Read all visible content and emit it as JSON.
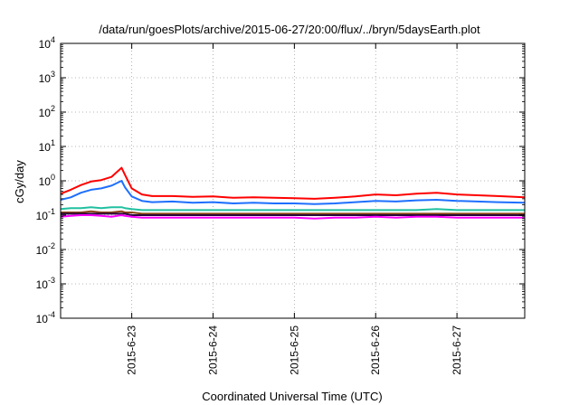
{
  "chart_data": {
    "type": "line",
    "title": "/data/run/goesPlots/archive/2015-06-27/20:00/flux/../bryn/5daysEarth.plot",
    "xlabel": "Coordinated Universal Time (UTC)",
    "ylabel": "cGy/day",
    "yscale": "log",
    "ylim": [
      0.0001,
      10000
    ],
    "xlim": [
      "2015-06-22 03:00",
      "2015-06-27 20:00"
    ],
    "x_ticks": [
      {
        "date": "2015-06-23",
        "label": "2015-6-23"
      },
      {
        "date": "2015-06-24",
        "label": "2015-6-24"
      },
      {
        "date": "2015-06-25",
        "label": "2015-6-25"
      },
      {
        "date": "2015-06-26",
        "label": "2015-6-26"
      },
      {
        "date": "2015-06-27",
        "label": "2015-6-27"
      }
    ],
    "y_ticks": [
      {
        "base": "10",
        "exp": "-4",
        "value": 0.0001
      },
      {
        "base": "10",
        "exp": "-3",
        "value": 0.001
      },
      {
        "base": "10",
        "exp": "-2",
        "value": 0.01
      },
      {
        "base": "10",
        "exp": "-1",
        "value": 0.1
      },
      {
        "base": "10",
        "exp": "0",
        "value": 1
      },
      {
        "base": "10",
        "exp": "1",
        "value": 10
      },
      {
        "base": "10",
        "exp": "2",
        "value": 100
      },
      {
        "base": "10",
        "exp": "3",
        "value": 1000
      },
      {
        "base": "10",
        "exp": "4",
        "value": 10000
      }
    ],
    "grid": true,
    "x": [
      "2015-06-22 03:00",
      "2015-06-22 06:00",
      "2015-06-22 09:00",
      "2015-06-22 12:00",
      "2015-06-22 15:00",
      "2015-06-22 18:00",
      "2015-06-22 21:00",
      "2015-06-22 22:00",
      "2015-06-23 00:00",
      "2015-06-23 03:00",
      "2015-06-23 06:00",
      "2015-06-23 12:00",
      "2015-06-23 18:00",
      "2015-06-24 00:00",
      "2015-06-24 06:00",
      "2015-06-24 12:00",
      "2015-06-24 18:00",
      "2015-06-25 00:00",
      "2015-06-25 06:00",
      "2015-06-25 12:00",
      "2015-06-25 18:00",
      "2015-06-26 00:00",
      "2015-06-26 06:00",
      "2015-06-26 12:00",
      "2015-06-26 18:00",
      "2015-06-27 00:00",
      "2015-06-27 06:00",
      "2015-06-27 12:00",
      "2015-06-27 20:00"
    ],
    "series": [
      {
        "color": "#ff0000",
        "values": [
          0.42,
          0.55,
          0.75,
          0.95,
          1.05,
          1.3,
          2.4,
          1.5,
          0.6,
          0.4,
          0.36,
          0.36,
          0.34,
          0.35,
          0.32,
          0.33,
          0.32,
          0.31,
          0.3,
          0.32,
          0.35,
          0.4,
          0.38,
          0.42,
          0.45,
          0.4,
          0.38,
          0.36,
          0.33
        ]
      },
      {
        "color": "#1e6fff",
        "values": [
          0.28,
          0.33,
          0.45,
          0.55,
          0.6,
          0.72,
          1.0,
          0.65,
          0.35,
          0.26,
          0.24,
          0.25,
          0.23,
          0.24,
          0.22,
          0.23,
          0.22,
          0.22,
          0.21,
          0.22,
          0.24,
          0.26,
          0.25,
          0.27,
          0.28,
          0.26,
          0.25,
          0.24,
          0.23
        ]
      },
      {
        "color": "#20c0a0",
        "values": [
          0.15,
          0.16,
          0.16,
          0.17,
          0.16,
          0.17,
          0.17,
          0.16,
          0.15,
          0.14,
          0.14,
          0.14,
          0.14,
          0.14,
          0.14,
          0.14,
          0.14,
          0.14,
          0.14,
          0.14,
          0.14,
          0.14,
          0.14,
          0.14,
          0.15,
          0.14,
          0.14,
          0.14,
          0.14
        ]
      },
      {
        "color": "#8b4513",
        "values": [
          0.12,
          0.12,
          0.12,
          0.13,
          0.12,
          0.12,
          0.13,
          0.12,
          0.12,
          0.11,
          0.11,
          0.11,
          0.11,
          0.11,
          0.11,
          0.11,
          0.11,
          0.11,
          0.11,
          0.11,
          0.11,
          0.11,
          0.11,
          0.11,
          0.11,
          0.11,
          0.11,
          0.11,
          0.11
        ]
      },
      {
        "color": "#2a0a3a",
        "values": [
          0.11,
          0.11,
          0.11,
          0.11,
          0.11,
          0.11,
          0.11,
          0.11,
          0.1,
          0.1,
          0.1,
          0.1,
          0.1,
          0.1,
          0.1,
          0.1,
          0.1,
          0.1,
          0.1,
          0.1,
          0.1,
          0.1,
          0.1,
          0.1,
          0.1,
          0.1,
          0.1,
          0.1,
          0.1
        ]
      },
      {
        "color": "#ff00ff",
        "values": [
          0.09,
          0.095,
          0.1,
          0.1,
          0.095,
          0.09,
          0.1,
          0.095,
          0.09,
          0.085,
          0.085,
          0.085,
          0.085,
          0.085,
          0.085,
          0.085,
          0.085,
          0.085,
          0.08,
          0.085,
          0.085,
          0.09,
          0.085,
          0.09,
          0.09,
          0.085,
          0.085,
          0.085,
          0.085
        ]
      }
    ]
  }
}
